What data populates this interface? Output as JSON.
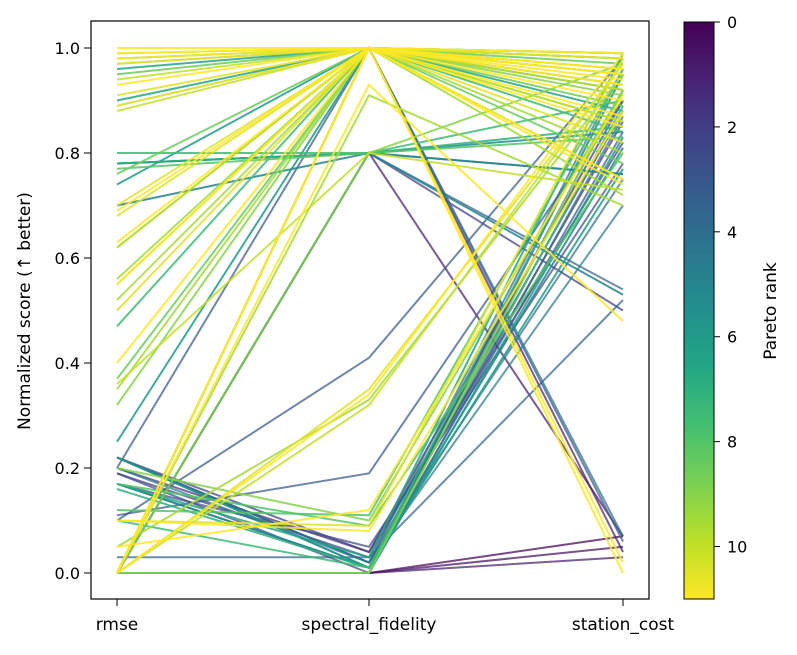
{
  "chart_data": {
    "type": "line",
    "subtype": "parallel-coordinates",
    "title": "",
    "categories": [
      "rmse",
      "spectral_fidelity",
      "station_cost"
    ],
    "ylabel": "Normalized score (↑ better)",
    "ylim": [
      -0.05,
      1.05
    ],
    "yticks": [
      0.0,
      0.2,
      0.4,
      0.6,
      0.8,
      1.0
    ],
    "ytick_labels": [
      "0.0",
      "0.2",
      "0.4",
      "0.6",
      "0.8",
      "1.0"
    ],
    "grid": false,
    "colorbar": {
      "label": "Pareto rank",
      "colormap": "viridis-reversed",
      "range": [
        0,
        11
      ],
      "ticks": [
        0,
        2,
        4,
        6,
        8,
        10
      ],
      "tick_labels": [
        "0",
        "2",
        "4",
        "6",
        "8",
        "10"
      ],
      "placement": "right"
    },
    "colors": {
      "rank_0": "#440154",
      "rank_2": "#3b528b",
      "rank_4": "#2c728e",
      "rank_6": "#21918c",
      "rank_8": "#5ec962",
      "rank_10": "#dde318",
      "rank_11": "#fde725"
    },
    "series": [
      {
        "rank": 0,
        "values": [
          0.0,
          0.0,
          0.07
        ]
      },
      {
        "rank": 0.5,
        "values": [
          0.0,
          0.0,
          0.05
        ]
      },
      {
        "rank": 0.8,
        "values": [
          0.0,
          0.8,
          0.07
        ]
      },
      {
        "rank": 1,
        "values": [
          0.0,
          0.0,
          0.03
        ]
      },
      {
        "rank": 1,
        "values": [
          0.0,
          1.0,
          0.04
        ]
      },
      {
        "rank": 1.5,
        "values": [
          0.2,
          0.04,
          0.9
        ]
      },
      {
        "rank": 1.5,
        "values": [
          0.22,
          0.02,
          0.86
        ]
      },
      {
        "rank": 2,
        "values": [
          0.19,
          0.03,
          0.88
        ]
      },
      {
        "rank": 2,
        "values": [
          0.22,
          0.04,
          0.82
        ]
      },
      {
        "rank": 2,
        "values": [
          0.0,
          0.8,
          0.5
        ]
      },
      {
        "rank": 2.5,
        "values": [
          0.17,
          0.05,
          0.78
        ]
      },
      {
        "rank": 2.5,
        "values": [
          0.19,
          0.0,
          0.95
        ]
      },
      {
        "rank": 3,
        "values": [
          0.22,
          0.01,
          0.84
        ]
      },
      {
        "rank": 3,
        "values": [
          0.11,
          0.19,
          0.9
        ]
      },
      {
        "rank": 3,
        "values": [
          0.2,
          1.0,
          0.06
        ]
      },
      {
        "rank": 3,
        "values": [
          0.1,
          0.41,
          0.98
        ]
      },
      {
        "rank": 3.5,
        "values": [
          0.03,
          0.03,
          0.52
        ]
      },
      {
        "rank": 3.5,
        "values": [
          0.0,
          0.8,
          0.54
        ]
      },
      {
        "rank": 4,
        "values": [
          0.22,
          0.02,
          0.75
        ]
      },
      {
        "rank": 4,
        "values": [
          0.0,
          0.0,
          0.87
        ]
      },
      {
        "rank": 4,
        "values": [
          0.22,
          0.02,
          0.96
        ]
      },
      {
        "rank": 4,
        "values": [
          0.0,
          1.0,
          0.07
        ]
      },
      {
        "rank": 4.5,
        "values": [
          0.17,
          0.01,
          0.92
        ]
      },
      {
        "rank": 4.5,
        "values": [
          0.2,
          0.02,
          0.7
        ]
      },
      {
        "rank": 4.5,
        "values": [
          0.0,
          0.8,
          0.76
        ]
      },
      {
        "rank": 5,
        "values": [
          0.7,
          0.8,
          0.53
        ]
      },
      {
        "rank": 5,
        "values": [
          0.78,
          0.8,
          0.76
        ]
      },
      {
        "rank": 5,
        "values": [
          0.17,
          0.01,
          0.81
        ]
      },
      {
        "rank": 5.5,
        "values": [
          0.78,
          0.8,
          0.84
        ]
      },
      {
        "rank": 6,
        "values": [
          0.25,
          1.0,
          0.92
        ]
      },
      {
        "rank": 6,
        "values": [
          0.74,
          1.0,
          0.93
        ]
      },
      {
        "rank": 6,
        "values": [
          0.22,
          0.01,
          0.77
        ]
      },
      {
        "rank": 6,
        "values": [
          0.0,
          0.0,
          0.83
        ]
      },
      {
        "rank": 6.5,
        "values": [
          0.9,
          1.0,
          0.88
        ]
      },
      {
        "rank": 6.5,
        "values": [
          0.17,
          0.03,
          0.99
        ]
      },
      {
        "rank": 6.5,
        "values": [
          0.96,
          1.0,
          0.98
        ]
      },
      {
        "rank": 7,
        "values": [
          0.78,
          0.8,
          0.85
        ]
      },
      {
        "rank": 7,
        "values": [
          0.16,
          0.01,
          0.95
        ]
      },
      {
        "rank": 7,
        "values": [
          0.0,
          1.0,
          0.95
        ]
      },
      {
        "rank": 7,
        "values": [
          0.97,
          1.0,
          0.96
        ]
      },
      {
        "rank": 7.5,
        "values": [
          0.89,
          1.0,
          0.99
        ]
      },
      {
        "rank": 7.5,
        "values": [
          0.47,
          1.0,
          0.84
        ]
      },
      {
        "rank": 7.5,
        "values": [
          0.1,
          0.01,
          0.89
        ]
      },
      {
        "rank": 7.5,
        "values": [
          0.8,
          0.8,
          0.9
        ]
      },
      {
        "rank": 8,
        "values": [
          0.77,
          0.8,
          0.83
        ]
      },
      {
        "rank": 8,
        "values": [
          0.17,
          0.09,
          0.8
        ]
      },
      {
        "rank": 8,
        "values": [
          0.0,
          1.0,
          0.99
        ]
      },
      {
        "rank": 8,
        "values": [
          0.12,
          0.11,
          0.96
        ]
      },
      {
        "rank": 8.5,
        "values": [
          0.37,
          1.0,
          0.89
        ]
      },
      {
        "rank": 8.5,
        "values": [
          0.76,
          1.0,
          0.78
        ]
      },
      {
        "rank": 8.5,
        "values": [
          0.95,
          1.0,
          0.97
        ]
      },
      {
        "rank": 8.5,
        "values": [
          0.98,
          1.0,
          0.99
        ]
      },
      {
        "rank": 9,
        "values": [
          0.62,
          1.0,
          0.91
        ]
      },
      {
        "rank": 9,
        "values": [
          0.0,
          0.0,
          0.92
        ]
      },
      {
        "rank": 9,
        "values": [
          0.0,
          0.8,
          0.97
        ]
      },
      {
        "rank": 9,
        "values": [
          0.32,
          1.0,
          0.86
        ]
      },
      {
        "rank": 9,
        "values": [
          0.2,
          0.1,
          0.92
        ]
      },
      {
        "rank": 9.5,
        "values": [
          0.35,
          1.0,
          0.75
        ]
      },
      {
        "rank": 9.5,
        "values": [
          0.52,
          1.0,
          0.72
        ]
      },
      {
        "rank": 9.5,
        "values": [
          0.56,
          1.0,
          0.8
        ]
      },
      {
        "rank": 9.5,
        "values": [
          0.0,
          0.91,
          0.7
        ]
      },
      {
        "rank": 9.5,
        "values": [
          0.05,
          0.33,
          0.95
        ]
      },
      {
        "rank": 10,
        "values": [
          0.0,
          0.32,
          0.97
        ]
      },
      {
        "rank": 10,
        "values": [
          0.55,
          1.0,
          0.86
        ]
      },
      {
        "rank": 10,
        "values": [
          0.62,
          1.0,
          0.95
        ]
      },
      {
        "rank": 10,
        "values": [
          0.94,
          1.0,
          0.92
        ]
      },
      {
        "rank": 10,
        "values": [
          0.88,
          1.0,
          0.98
        ]
      },
      {
        "rank": 10,
        "values": [
          0.36,
          0.8,
          0.73
        ]
      },
      {
        "rank": 10.5,
        "values": [
          0.68,
          1.0,
          0.82
        ]
      },
      {
        "rank": 10.5,
        "values": [
          0.7,
          1.0,
          0.95
        ]
      },
      {
        "rank": 10.5,
        "values": [
          0.91,
          1.0,
          0.99
        ]
      },
      {
        "rank": 10.5,
        "values": [
          0.99,
          1.0,
          0.98
        ]
      },
      {
        "rank": 10.5,
        "values": [
          0.5,
          1.0,
          0.93
        ]
      },
      {
        "rank": 10.5,
        "values": [
          0.0,
          0.35,
          0.97
        ]
      },
      {
        "rank": 10.5,
        "values": [
          0.1,
          0.09,
          0.98
        ]
      },
      {
        "rank": 11,
        "values": [
          0.99,
          1.0,
          0.0
        ]
      },
      {
        "rank": 11,
        "values": [
          0.98,
          1.0,
          0.99
        ]
      },
      {
        "rank": 11,
        "values": [
          1.0,
          1.0,
          0.96
        ]
      },
      {
        "rank": 11,
        "values": [
          0.93,
          1.0,
          0.87
        ]
      },
      {
        "rank": 11,
        "values": [
          0.89,
          1.0,
          0.75
        ]
      },
      {
        "rank": 11,
        "values": [
          0.69,
          1.0,
          0.93
        ]
      },
      {
        "rank": 11,
        "values": [
          0.63,
          1.0,
          0.96
        ]
      },
      {
        "rank": 11,
        "values": [
          0.55,
          1.0,
          0.85
        ]
      },
      {
        "rank": 11,
        "values": [
          0.4,
          1.0,
          0.9
        ]
      },
      {
        "rank": 11,
        "values": [
          0.0,
          0.93,
          0.48
        ]
      },
      {
        "rank": 11,
        "values": [
          0.0,
          1.0,
          0.02
        ]
      },
      {
        "rank": 11,
        "values": [
          0.1,
          0.08,
          0.88
        ]
      },
      {
        "rank": 11,
        "values": [
          0.05,
          0.12,
          0.91
        ]
      },
      {
        "rank": 11,
        "values": [
          0.0,
          1.0,
          0.74
        ]
      },
      {
        "rank": 11,
        "values": [
          0.0,
          1.0,
          0.95
        ]
      },
      {
        "rank": 11,
        "values": [
          0.0,
          0.34,
          0.99
        ]
      },
      {
        "rank": 11,
        "values": [
          0.97,
          1.0,
          0.94
        ]
      }
    ]
  }
}
